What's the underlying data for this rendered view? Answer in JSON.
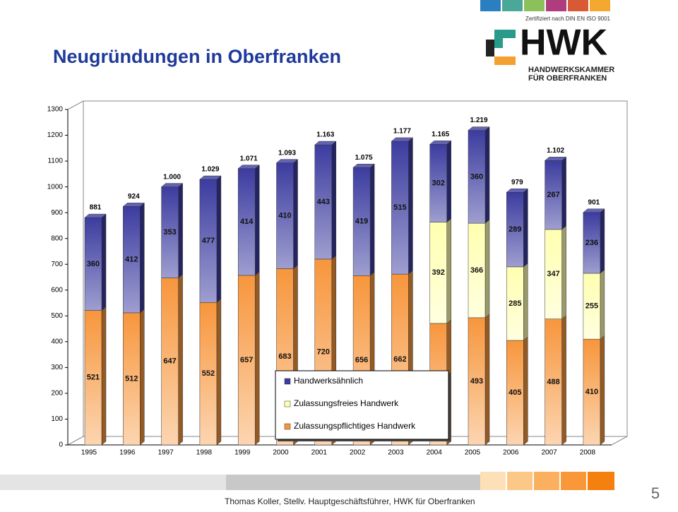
{
  "slide": {
    "title": "Neugründungen  in Oberfranken",
    "logo": {
      "certificate": "Zertifiziert nach DIN EN ISO 9001",
      "name": "HWK",
      "line1": "HANDWERKSKAMMER",
      "line2": "FÜR OBERFRANKEN"
    },
    "footer": "Thomas Koller, Stellv. Hauptgeschäftsführer, HWK für Oberfranken",
    "page_number": "5"
  },
  "chart_data": {
    "type": "stacked_bar",
    "categories": [
      "1995",
      "1996",
      "1997",
      "1998",
      "1999",
      "2000",
      "2001",
      "2002",
      "2003",
      "2004",
      "2005",
      "2006",
      "2007",
      "2008"
    ],
    "series": [
      {
        "name": "Zulassungspflichtiges Handwerk",
        "color": "#f7963c",
        "values": [
          521,
          512,
          647,
          552,
          657,
          683,
          720,
          656,
          662,
          471,
          493,
          405,
          488,
          410
        ]
      },
      {
        "name": "Zulassungsfreies Handwerk",
        "color": "#ffffb0",
        "values": [
          null,
          null,
          null,
          null,
          null,
          null,
          null,
          null,
          null,
          392,
          366,
          285,
          347,
          255
        ]
      },
      {
        "name": "Handwerksähnlich",
        "color": "#3c3ca0",
        "values": [
          360,
          412,
          353,
          477,
          414,
          410,
          443,
          419,
          515,
          302,
          360,
          289,
          267,
          236
        ]
      }
    ],
    "totals": {
      "values": [
        881,
        924,
        1000,
        1029,
        1071,
        1093,
        1163,
        1075,
        1177,
        1165,
        1219,
        979,
        1102,
        901
      ],
      "value_labels": [
        "881",
        "924",
        "1.000",
        "1.029",
        "1.071",
        "1.093",
        "1.163",
        "1.075",
        "1.177",
        "1.165",
        "1.219",
        "979",
        "1.102",
        "901"
      ]
    },
    "ylim": [
      0,
      1300
    ],
    "yticks": [
      0,
      100,
      200,
      300,
      400,
      500,
      600,
      700,
      800,
      900,
      1000,
      1100,
      1200,
      1300
    ],
    "grid": false,
    "legend": "bottom-center"
  }
}
